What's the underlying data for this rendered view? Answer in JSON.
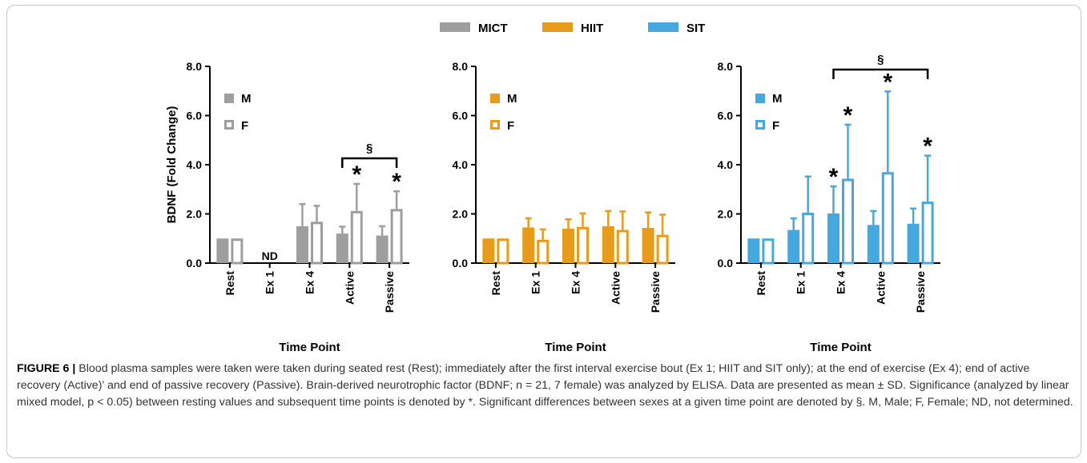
{
  "legend": [
    {
      "label": "MICT",
      "color": "#9e9e9e"
    },
    {
      "label": "HIIT",
      "color": "#e89b1a"
    },
    {
      "label": "SIT",
      "color": "#45a9e0"
    }
  ],
  "chart_data": [
    {
      "type": "bar",
      "group": "MICT",
      "color": "#9e9e9e",
      "categories": [
        "Rest",
        "Ex 1",
        "Ex 4",
        "Active",
        "Passive"
      ],
      "series": [
        {
          "name": "M",
          "fill": "solid",
          "values": [
            1.0,
            null,
            1.5,
            1.2,
            1.12
          ],
          "sd": [
            0,
            null,
            0.9,
            0.28,
            0.38
          ]
        },
        {
          "name": "F",
          "fill": "open",
          "values": [
            1.0,
            null,
            1.68,
            2.12,
            2.2
          ],
          "sd": [
            0,
            null,
            0.65,
            1.1,
            0.72
          ]
        }
      ],
      "category_notes": {
        "Ex 1": "ND"
      },
      "significance_stars": [
        {
          "category": "Active",
          "series": "F"
        },
        {
          "category": "Passive",
          "series": "F"
        }
      ],
      "sex_difference_bracket": {
        "from": "Active",
        "to": "Passive",
        "label": "§"
      },
      "ylabel": "BDNF (Fold Change)",
      "xlabel": "Time Point",
      "ylim": [
        0,
        8
      ],
      "yticks": [
        "0.0",
        "2.0",
        "4.0",
        "6.0",
        "8.0"
      ]
    },
    {
      "type": "bar",
      "group": "HIIT",
      "color": "#e89b1a",
      "categories": [
        "Rest",
        "Ex 1",
        "Ex 4",
        "Active",
        "Passive"
      ],
      "series": [
        {
          "name": "M",
          "fill": "solid",
          "values": [
            1.0,
            1.45,
            1.4,
            1.5,
            1.43
          ],
          "sd": [
            0,
            0.37,
            0.38,
            0.62,
            0.63
          ]
        },
        {
          "name": "F",
          "fill": "open",
          "values": [
            1.0,
            0.95,
            1.47,
            1.35,
            1.15
          ],
          "sd": [
            0,
            0.42,
            0.55,
            0.75,
            0.82
          ]
        }
      ],
      "xlabel": "Time Point",
      "ylim": [
        0,
        8
      ],
      "yticks": [
        "0.0",
        "2.0",
        "4.0",
        "6.0",
        "8.0"
      ]
    },
    {
      "type": "bar",
      "group": "SIT",
      "color": "#45a9e0",
      "categories": [
        "Rest",
        "Ex 1",
        "Ex 4",
        "Active",
        "Passive"
      ],
      "series": [
        {
          "name": "M",
          "fill": "solid",
          "values": [
            1.0,
            1.35,
            2.02,
            1.55,
            1.6
          ],
          "sd": [
            0,
            0.47,
            1.1,
            0.57,
            0.62
          ]
        },
        {
          "name": "F",
          "fill": "open",
          "values": [
            1.0,
            2.05,
            3.43,
            3.7,
            2.5
          ],
          "sd": [
            0,
            1.47,
            2.2,
            3.28,
            1.87
          ]
        }
      ],
      "significance_stars": [
        {
          "category": "Ex 4",
          "series": "M"
        },
        {
          "category": "Ex 4",
          "series": "F"
        },
        {
          "category": "Active",
          "series": "F"
        },
        {
          "category": "Passive",
          "series": "F"
        }
      ],
      "sex_difference_bracket": {
        "from": "Ex 4",
        "to": "Passive",
        "label": "§"
      },
      "xlabel": "Time Point",
      "ylim": [
        0,
        8
      ],
      "yticks": [
        "0.0",
        "2.0",
        "4.0",
        "6.0",
        "8.0"
      ]
    }
  ],
  "caption": {
    "label": "FIGURE 6 |",
    "text": "Blood plasma samples were taken were taken during seated rest (Rest); immediately after the first interval exercise bout (Ex 1; HIIT and SIT only); at the end of exercise (Ex 4); end of active recovery (Active)’ and end of passive recovery (Passive). Brain-derived neurotrophic factor (BDNF; n = 21, 7 female) was analyzed by ELISA. Data are presented as mean ± SD. Significance (analyzed by linear mixed model, p < 0.05) between resting values and subsequent time points is denoted by *. Significant differences between sexes at a given time point are denoted by §. M, Male; F, Female; ND, not determined."
  }
}
